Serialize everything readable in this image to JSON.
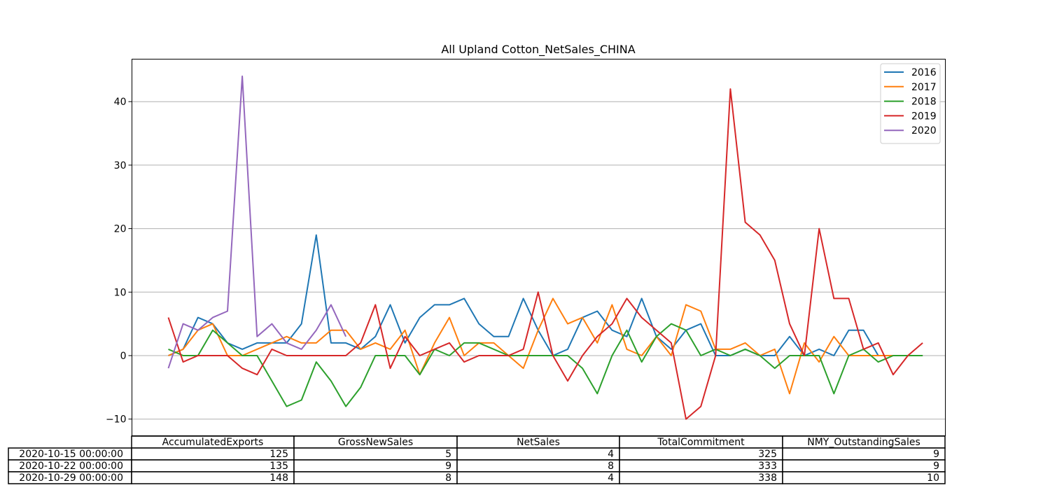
{
  "chart_data": {
    "type": "line",
    "title": "All Upland Cotton_NetSales_CHINA",
    "xlabel": "",
    "ylabel": "",
    "ylim": [
      -12.5,
      46.7
    ],
    "yticks": [
      -10,
      0,
      10,
      20,
      30,
      40
    ],
    "grid": "horizontal",
    "legend_position": "top-right",
    "series": [
      {
        "name": "2016",
        "color": "#1f77b4",
        "values": [
          0,
          1,
          6,
          5,
          2,
          1,
          2,
          2,
          2,
          5,
          19,
          2,
          2,
          1,
          3,
          8,
          2,
          6,
          8,
          8,
          9,
          5,
          3,
          3,
          9,
          4,
          0,
          1,
          6,
          7,
          4,
          3,
          9,
          3,
          1,
          4,
          5,
          0,
          0,
          1,
          0,
          0,
          3,
          0,
          1,
          0,
          4,
          4,
          0,
          0,
          0,
          0
        ]
      },
      {
        "name": "2017",
        "color": "#ff7f0e",
        "values": [
          0,
          1,
          4,
          5,
          0,
          0,
          1,
          2,
          3,
          2,
          2,
          4,
          4,
          1,
          2,
          1,
          4,
          -3,
          2,
          6,
          0,
          2,
          2,
          0,
          -2,
          4,
          9,
          5,
          6,
          2,
          8,
          1,
          0,
          3,
          0,
          8,
          7,
          1,
          1,
          2,
          0,
          1,
          -6,
          2,
          -1,
          3,
          0,
          0,
          0,
          0,
          0,
          0
        ]
      },
      {
        "name": "2018",
        "color": "#2ca02c",
        "values": [
          1,
          0,
          0,
          4,
          2,
          0,
          0,
          -4,
          -8,
          -7,
          -1,
          -4,
          -8,
          -5,
          0,
          0,
          0,
          -3,
          1,
          0,
          2,
          2,
          1,
          0,
          0,
          0,
          0,
          0,
          -2,
          -6,
          0,
          4,
          -1,
          3,
          5,
          4,
          0,
          1,
          0,
          1,
          0,
          -2,
          0,
          0,
          0,
          -6,
          0,
          1,
          -1,
          0,
          0,
          0
        ]
      },
      {
        "name": "2019",
        "color": "#d62728",
        "values": [
          6,
          -1,
          0,
          0,
          0,
          -2,
          -3,
          1,
          0,
          0,
          0,
          0,
          0,
          2,
          8,
          -2,
          3,
          0,
          1,
          2,
          -1,
          0,
          0,
          0,
          1,
          10,
          0,
          -4,
          0,
          3,
          5,
          9,
          6,
          4,
          2,
          -10,
          -8,
          0,
          42,
          21,
          19,
          15,
          5,
          0,
          20,
          9,
          9,
          1,
          2,
          -3,
          0,
          2
        ]
      },
      {
        "name": "2020",
        "color": "#9467bd",
        "values": [
          -2,
          5,
          4,
          6,
          7,
          44,
          3,
          5,
          2,
          1,
          4,
          8,
          3
        ]
      }
    ]
  },
  "table": {
    "columns": [
      "AccumulatedExports",
      "GrossNewSales",
      "NetSales",
      "TotalCommitment",
      "NMY_OutstandingSales"
    ],
    "rows": [
      {
        "label": "2020-10-15 00:00:00",
        "cells": [
          "125",
          "5",
          "4",
          "325",
          "9"
        ]
      },
      {
        "label": "2020-10-22 00:00:00",
        "cells": [
          "135",
          "9",
          "8",
          "333",
          "9"
        ]
      },
      {
        "label": "2020-10-29 00:00:00",
        "cells": [
          "148",
          "8",
          "4",
          "338",
          "10"
        ]
      }
    ]
  }
}
